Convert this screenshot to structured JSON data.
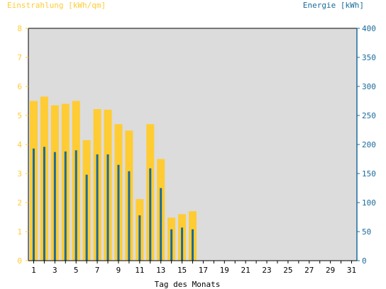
{
  "chart_data": {
    "type": "bar",
    "left_axis_label": "Einstrahlung [kWh/qm]",
    "right_axis_label": "Energie [kWh]",
    "xlabel": "Tag des Monats",
    "left_ylim": [
      0,
      8
    ],
    "right_ylim": [
      0,
      400
    ],
    "left_ticks": [
      0,
      1,
      2,
      3,
      4,
      5,
      6,
      7,
      8
    ],
    "right_ticks": [
      0,
      50,
      100,
      150,
      200,
      250,
      300,
      350,
      400
    ],
    "x_tick_labels": [
      1,
      3,
      5,
      7,
      9,
      11,
      13,
      15,
      17,
      19,
      21,
      23,
      25,
      27,
      29,
      31
    ],
    "days": 31,
    "grid": false,
    "series": [
      {
        "axis": "left",
        "color": "#ffcc33",
        "values": [
          5.5,
          5.65,
          5.35,
          5.4,
          5.5,
          4.15,
          5.22,
          5.2,
          4.7,
          4.48,
          2.12,
          4.7,
          3.5,
          1.48,
          1.6,
          1.7
        ]
      },
      {
        "axis": "right",
        "color": "#1a6b9a",
        "values": [
          193,
          196,
          187,
          188,
          190,
          148,
          183,
          183,
          165,
          154,
          78,
          159,
          125,
          54,
          57,
          54
        ]
      }
    ],
    "colors": {
      "left_axis": "#ffcc33",
      "right_axis": "#1a6b9a",
      "plot_background": "#dcdcdc"
    }
  }
}
